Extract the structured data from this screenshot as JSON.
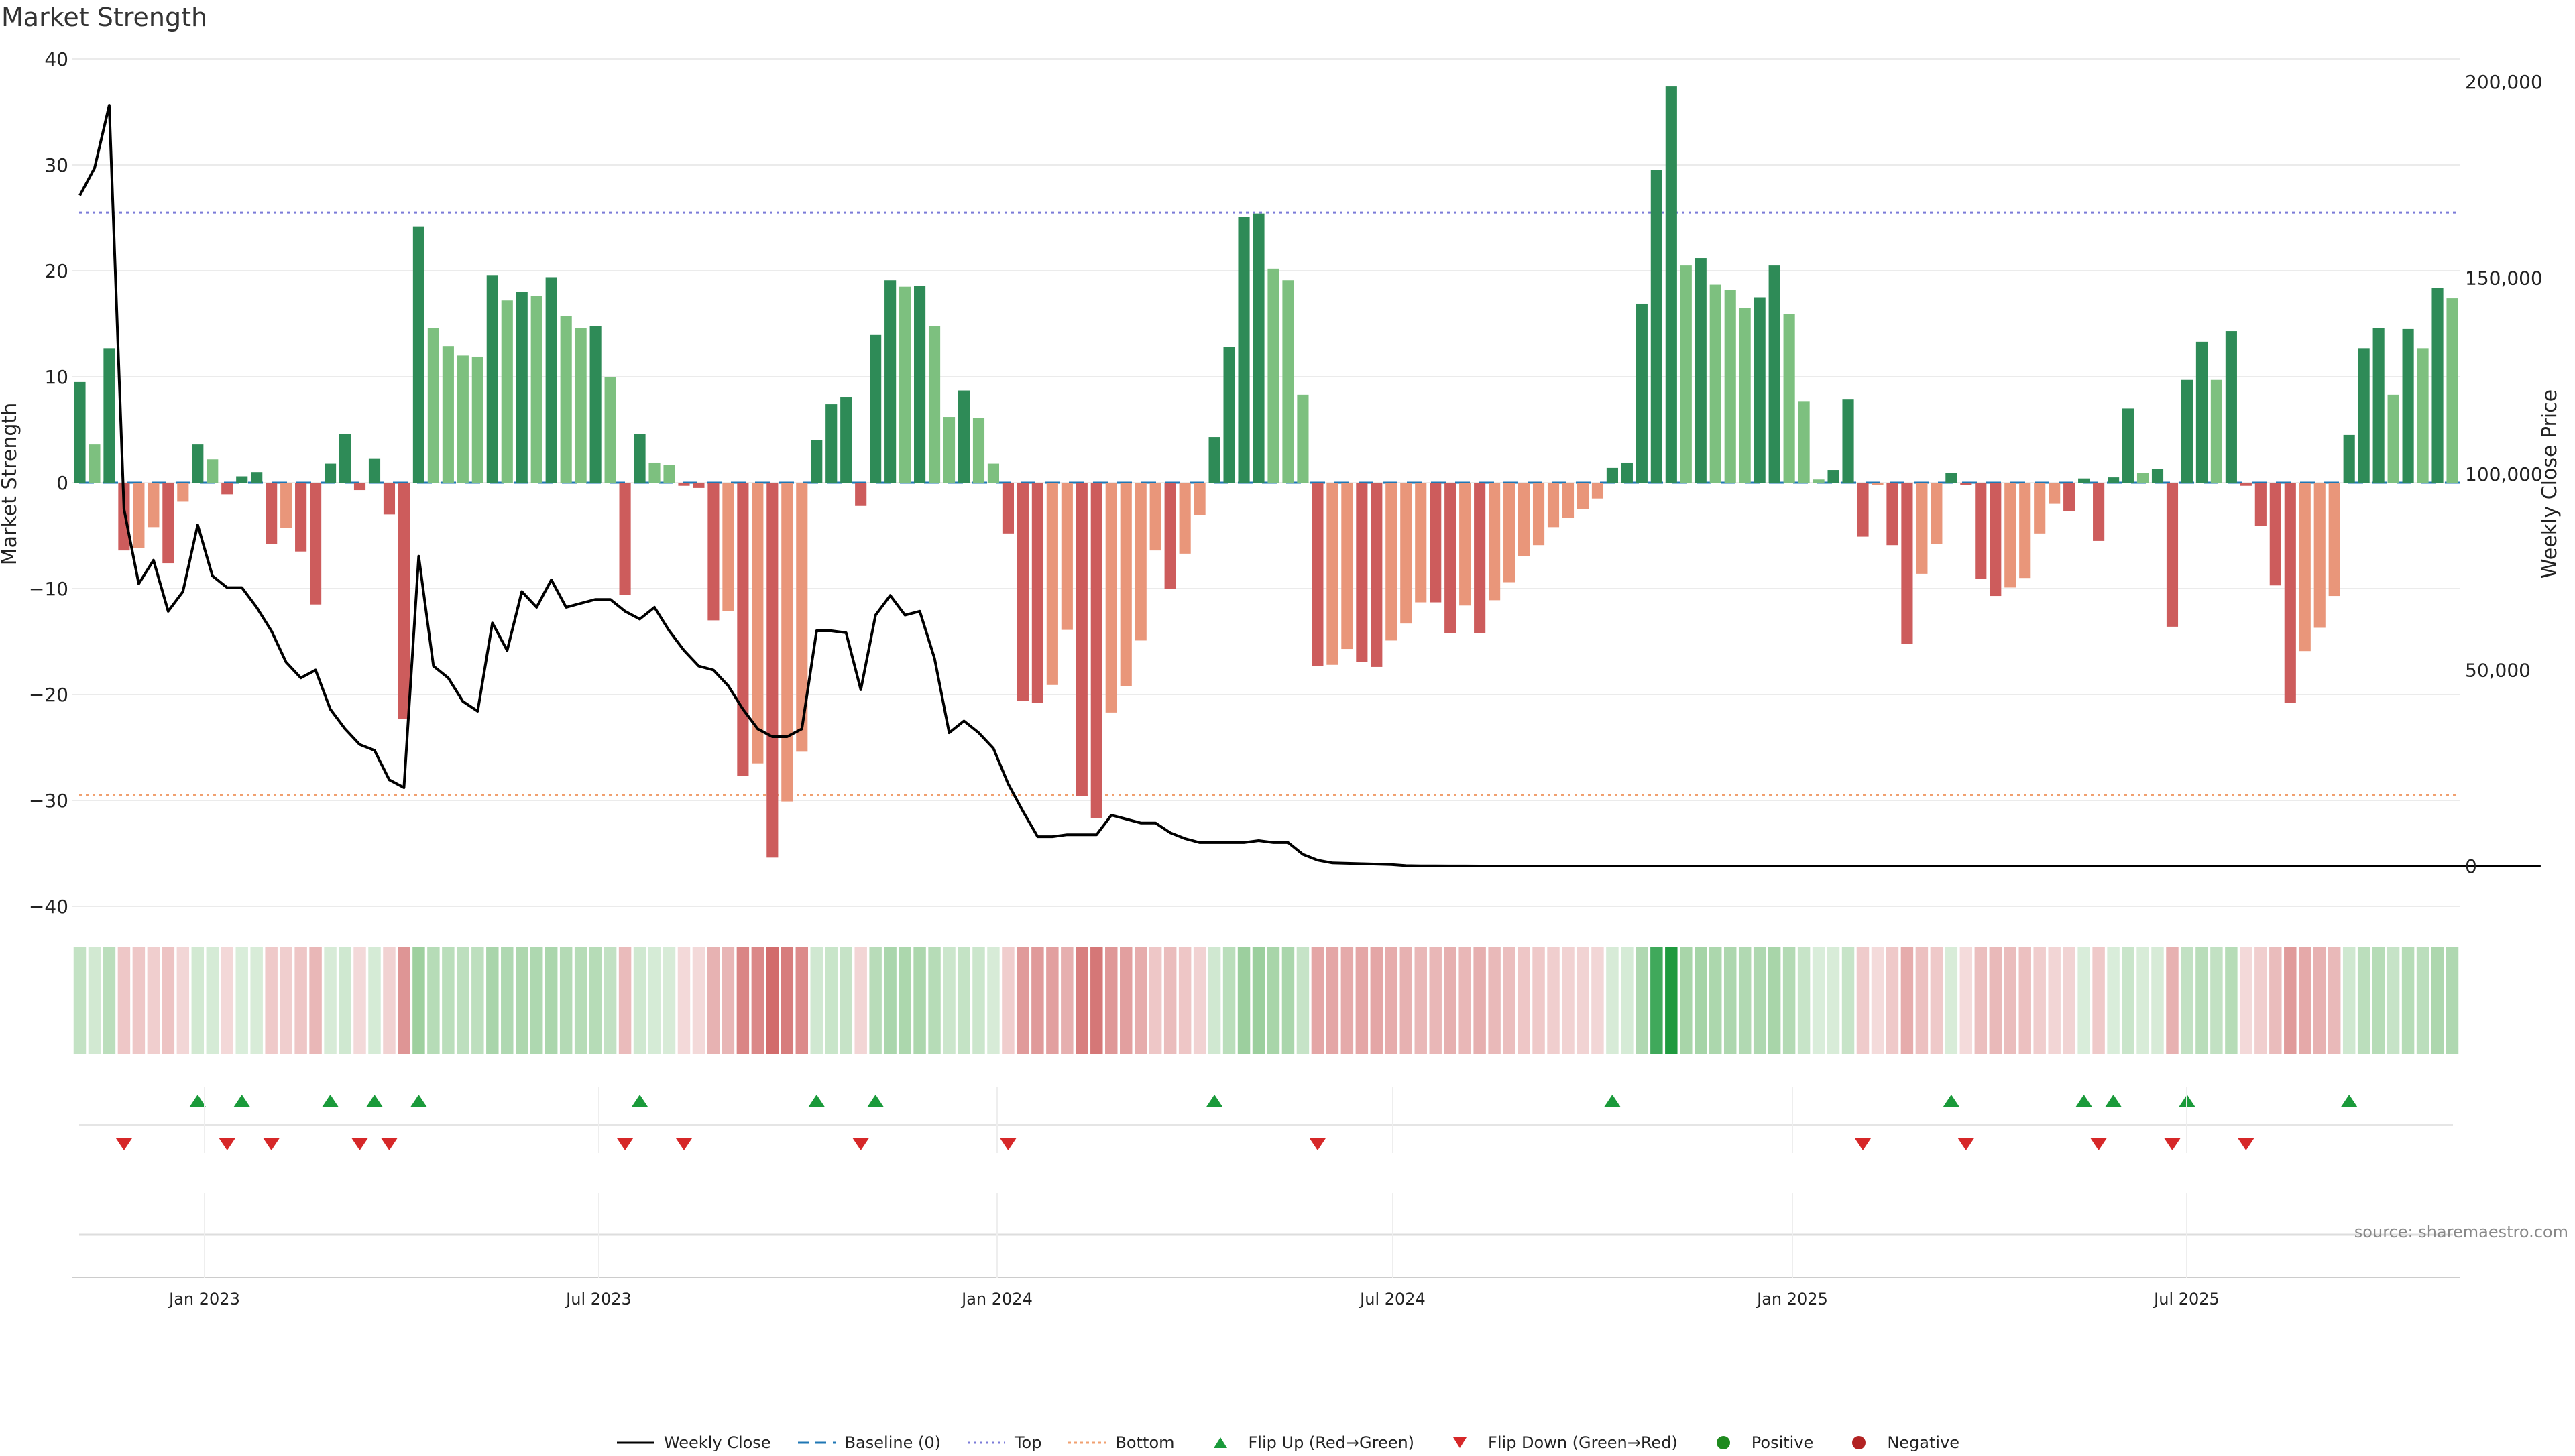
{
  "title": "Market Strength",
  "source": "source: sharemaestro.com",
  "colors": {
    "pos_dark": "#2e8b57",
    "pos_light": "#7dc07f",
    "neg_dark": "#cd5c5c",
    "neg_light": "#e9967a",
    "top_line": "#7b7bd8",
    "bottom_line": "#f0a070",
    "baseline": "#1f77b4",
    "weekly_close": "#000000",
    "flip_up": "#1a9a3a",
    "flip_down": "#d62728"
  },
  "chart_data": {
    "type": "bar",
    "ylabel": "Market Strength",
    "y2label": "Weekly Close Price",
    "ylim": [
      -40,
      40
    ],
    "y2lim": [
      -10000,
      210000
    ],
    "yticks": [
      "40",
      "30",
      "20",
      "10",
      "0",
      "−10",
      "−20",
      "−30",
      "−40"
    ],
    "y2ticks": [
      "200,000",
      "150,000",
      "100,000",
      "50,000",
      "0"
    ],
    "xticks": [
      "Jan 2023",
      "Jul 2023",
      "Jan 2024",
      "Jul 2024",
      "Jan 2025",
      "Jul 2025"
    ],
    "top_level": 25.5,
    "bottom_level": -29.5,
    "x_start": "2022-11-21",
    "x_interval": "1 week",
    "series": [
      {
        "name": "Market Strength",
        "values": [
          9.5,
          3.6,
          12.7,
          -6.4,
          -6.2,
          -4.2,
          -7.6,
          -1.8,
          3.6,
          2.2,
          -1.1,
          0.6,
          1.0,
          -5.8,
          -4.3,
          -6.5,
          -11.5,
          1.8,
          4.6,
          -0.7,
          2.3,
          -3.0,
          -22.3,
          24.2,
          14.6,
          12.9,
          12.0,
          11.9,
          19.6,
          17.2,
          18.0,
          17.6,
          19.4,
          15.7,
          14.6,
          14.8,
          10.0,
          -10.6,
          4.6,
          1.9,
          1.7,
          -0.3,
          -0.5,
          -13.0,
          -12.1,
          -27.7,
          -26.5,
          -35.4,
          -30.1,
          -25.4,
          4.0,
          7.4,
          8.1,
          -2.2,
          14.0,
          19.1,
          18.5,
          18.6,
          14.8,
          6.2,
          8.7,
          6.1,
          1.8,
          -4.8,
          -20.6,
          -20.8,
          -19.1,
          -13.9,
          -29.6,
          -31.7,
          -21.7,
          -19.2,
          -14.9,
          -6.4,
          -10.0,
          -6.7,
          -3.1,
          4.3,
          12.8,
          25.1,
          25.4,
          20.2,
          19.1,
          8.3,
          -17.3,
          -17.2,
          -15.7,
          -16.9,
          -17.4,
          -14.9,
          -13.3,
          -11.3,
          -11.3,
          -14.2,
          -11.6,
          -14.2,
          -11.1,
          -9.4,
          -6.9,
          -5.9,
          -4.2,
          -3.3,
          -2.5,
          -1.5,
          1.4,
          1.9,
          16.9,
          29.5,
          37.4,
          20.5,
          21.2,
          18.7,
          18.2,
          16.5,
          17.5,
          20.5,
          15.9,
          7.7,
          0.3,
          1.2,
          7.9,
          -5.1,
          -0.2,
          -5.9,
          -15.2,
          -8.6,
          -5.8,
          0.9,
          -0.2,
          -9.1,
          -10.7,
          -9.9,
          -9.0,
          -4.8,
          -2.0,
          -2.7,
          0.4,
          -5.5,
          0.5,
          7.0,
          0.9,
          1.3,
          -13.6,
          9.7,
          13.3,
          9.7,
          14.3,
          -0.3,
          -4.1,
          -9.7,
          -20.8,
          -15.9,
          -13.7,
          -10.7,
          4.5,
          12.7,
          14.6,
          8.3,
          14.5,
          12.7,
          18.4,
          17.4
        ]
      },
      {
        "name": "Weekly Close",
        "values": [
          171000,
          178000,
          194000,
          91000,
          72000,
          78000,
          65000,
          70000,
          87000,
          74000,
          71000,
          71000,
          66000,
          60000,
          52000,
          48000,
          50000,
          40000,
          35000,
          31000,
          29500,
          22000,
          20000,
          79000,
          51000,
          48000,
          42000,
          39500,
          62000,
          55000,
          70000,
          66000,
          73000,
          66000,
          67000,
          68000,
          68000,
          65000,
          63000,
          66000,
          60000,
          55000,
          51000,
          50000,
          46000,
          40000,
          35000,
          33000,
          33000,
          35000,
          60000,
          60000,
          59500,
          45000,
          64000,
          69000,
          64000,
          65000,
          53000,
          34000,
          37000,
          34000,
          30000,
          21000,
          14000,
          7500,
          7500,
          8000,
          8000,
          8000,
          13000,
          12000,
          11000,
          11000,
          8500,
          7000,
          6000,
          6000,
          6000,
          6000,
          6500,
          6000,
          6000,
          3000,
          1500,
          800,
          700,
          600,
          500,
          400,
          100,
          50,
          30,
          20,
          10,
          5,
          5,
          5,
          5,
          5,
          5,
          5,
          5,
          5,
          5,
          5,
          5,
          5,
          5,
          5,
          5,
          5,
          5,
          5,
          5,
          5,
          5,
          5,
          5,
          5,
          5,
          5,
          5,
          5,
          5,
          5,
          5,
          5,
          5,
          5,
          5,
          5,
          5,
          5,
          5,
          5,
          5,
          5,
          5,
          5,
          5,
          5,
          5,
          5,
          5,
          5,
          5,
          5,
          5,
          5,
          5,
          5,
          5,
          5,
          5,
          5,
          5,
          5,
          5,
          5,
          5,
          5,
          5,
          5,
          5,
          5,
          5,
          5
        ]
      },
      {
        "name": "Baseline (0)"
      },
      {
        "name": "Top"
      },
      {
        "name": "Bottom"
      },
      {
        "name": "Flip Up (Red→Green)"
      },
      {
        "name": "Flip Down (Green→Red)"
      },
      {
        "name": "Positive"
      },
      {
        "name": "Negative"
      }
    ]
  },
  "legend": [
    {
      "label": "Weekly Close",
      "symbol": "line",
      "color": "#000000"
    },
    {
      "label": "Baseline (0)",
      "symbol": "dash",
      "color": "#1f77b4"
    },
    {
      "label": "Top",
      "symbol": "dot",
      "color": "#7b7bd8"
    },
    {
      "label": "Bottom",
      "symbol": "dot",
      "color": "#f0a070"
    },
    {
      "label": "Flip Up (Red→Green)",
      "symbol": "tri-up",
      "color": "#1a9a3a"
    },
    {
      "label": "Flip Down (Green→Red)",
      "symbol": "tri-down",
      "color": "#d62728"
    },
    {
      "label": "Positive",
      "symbol": "circle",
      "color": "#1e8a1e"
    },
    {
      "label": "Negative",
      "symbol": "circle",
      "color": "#b22222"
    }
  ]
}
